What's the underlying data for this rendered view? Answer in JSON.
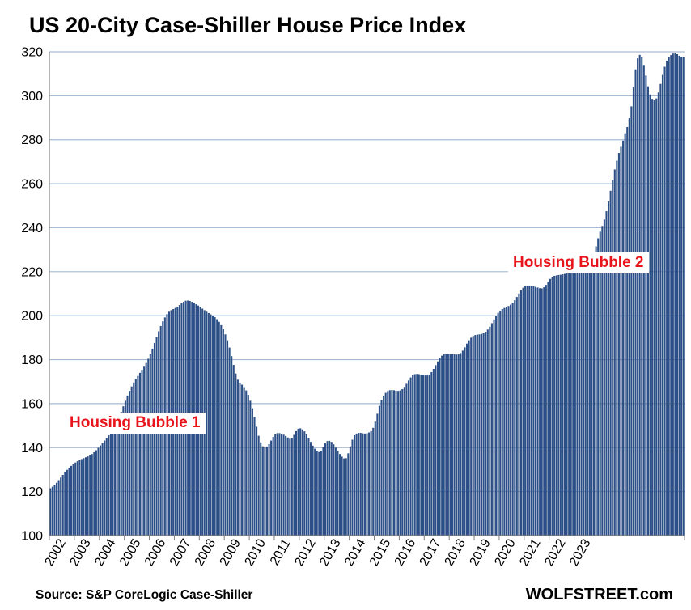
{
  "title": "US 20-City Case-Shiller House Price Index",
  "source": "Source: S&P CoreLogic Case-Shiller",
  "brand": "WOLFSTREET.com",
  "colors": {
    "bar": "#2b4f86",
    "grid": "#a6bcd6",
    "annotation": "#e8141c"
  },
  "chart_data": {
    "type": "bar",
    "title": "US 20-City Case-Shiller House Price Index",
    "xlabel": "",
    "ylabel": "",
    "ylim": [
      100,
      320
    ],
    "yticks": [
      100,
      120,
      140,
      160,
      180,
      200,
      220,
      240,
      260,
      280,
      300,
      320
    ],
    "xtick_labels": [
      "2002",
      "2003",
      "2004",
      "2005",
      "2006",
      "2007",
      "2008",
      "2009",
      "2010",
      "2011",
      "2012",
      "2013",
      "2014",
      "2015",
      "2016",
      "2017",
      "2018",
      "2019",
      "2020",
      "2021",
      "2022",
      "2023"
    ],
    "frequency": "monthly",
    "start": "2002-01",
    "grid": true,
    "annotations": [
      {
        "text": "Housing Bubble 1",
        "near": "2006"
      },
      {
        "text": "Housing Bubble 2",
        "near": "2022"
      }
    ],
    "values": [
      121.5,
      122.2,
      123.0,
      124.0,
      125.2,
      126.4,
      127.6,
      128.8,
      129.9,
      130.9,
      131.7,
      132.5,
      133.2,
      133.8,
      134.3,
      134.8,
      135.2,
      135.6,
      136.0,
      136.5,
      137.1,
      137.9,
      138.8,
      139.9,
      141.0,
      142.1,
      143.2,
      144.4,
      145.6,
      146.8,
      148.0,
      149.6,
      151.6,
      153.8,
      156.2,
      158.8,
      161.3,
      163.7,
      165.8,
      167.8,
      169.6,
      171.2,
      172.6,
      174.0,
      175.4,
      176.8,
      178.5,
      180.4,
      182.6,
      185.0,
      187.6,
      190.3,
      192.9,
      195.3,
      197.4,
      199.2,
      200.7,
      201.8,
      202.5,
      203.0,
      203.5,
      204.1,
      204.8,
      205.6,
      206.3,
      206.8,
      206.9,
      206.7,
      206.3,
      205.8,
      205.2,
      204.6,
      203.9,
      203.2,
      202.5,
      201.8,
      201.2,
      200.6,
      200.0,
      199.3,
      198.4,
      197.2,
      195.7,
      193.8,
      191.5,
      188.8,
      185.5,
      181.6,
      177.6,
      173.7,
      170.9,
      169.5,
      168.6,
      167.5,
      166.0,
      164.0,
      161.3,
      157.9,
      153.8,
      149.5,
      145.4,
      142.4,
      140.6,
      140.1,
      140.5,
      141.6,
      143.2,
      144.9,
      146.1,
      146.6,
      146.6,
      146.3,
      145.9,
      145.3,
      144.6,
      144.0,
      144.3,
      145.8,
      147.5,
      148.6,
      148.8,
      148.3,
      147.4,
      146.1,
      144.4,
      142.6,
      140.9,
      139.5,
      138.5,
      138.0,
      138.6,
      140.2,
      141.9,
      143.0,
      143.1,
      142.6,
      141.5,
      140.0,
      138.5,
      137.1,
      135.9,
      135.1,
      135.2,
      137.4,
      140.6,
      143.6,
      145.6,
      146.4,
      146.7,
      146.7,
      146.5,
      146.4,
      146.5,
      146.9,
      147.5,
      149.0,
      151.8,
      155.4,
      159.0,
      161.7,
      163.6,
      164.9,
      165.7,
      166.1,
      166.2,
      166.1,
      165.9,
      165.8,
      166.0,
      166.6,
      167.6,
      169.0,
      170.5,
      171.9,
      172.9,
      173.4,
      173.5,
      173.4,
      173.2,
      173.0,
      172.8,
      172.8,
      173.2,
      174.3,
      175.8,
      177.5,
      179.2,
      180.7,
      181.8,
      182.4,
      182.6,
      182.6,
      182.5,
      182.5,
      182.4,
      182.3,
      182.4,
      183.0,
      184.1,
      185.6,
      187.3,
      188.8,
      190.0,
      190.8,
      191.2,
      191.4,
      191.5,
      191.7,
      192.0,
      192.7,
      193.7,
      195.0,
      196.6,
      198.3,
      199.9,
      201.3,
      202.3,
      203.0,
      203.5,
      203.9,
      204.4,
      205.0,
      205.8,
      207.0,
      208.5,
      210.1,
      211.6,
      212.7,
      213.4,
      213.7,
      213.7,
      213.6,
      213.4,
      213.1,
      212.8,
      212.5,
      212.4,
      212.9,
      214.0,
      215.5,
      216.7,
      217.6,
      218.1,
      218.3,
      218.5,
      218.6,
      218.8,
      219.0,
      219.2,
      219.4,
      219.6,
      219.8,
      219.9,
      220.0,
      220.1,
      220.2,
      220.4,
      220.5,
      220.7,
      220.9,
      223.5,
      227.5,
      231.5,
      235.2,
      238.2,
      240.8,
      243.7,
      247.5,
      252.0,
      256.8,
      261.8,
      266.5,
      270.5,
      274.0,
      276.8,
      279.6,
      282.6,
      285.8,
      289.8,
      295.2,
      304.0,
      312.0,
      317.0,
      318.6,
      317.5,
      314.0,
      309.2,
      304.3,
      300.6,
      298.6,
      298.0,
      298.8,
      301.5,
      305.4,
      309.5,
      313.2,
      315.9,
      317.6,
      318.5,
      319.2,
      319.4,
      318.9,
      318.2,
      317.8,
      317.6
    ]
  }
}
